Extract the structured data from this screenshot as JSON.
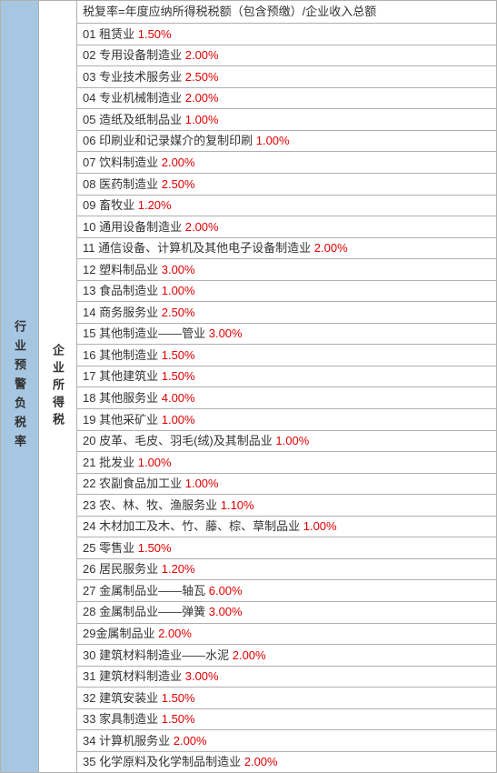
{
  "leftColLabel": "行业预警负税率",
  "midColLabel": "企业所得税",
  "headerFormula": "税复率=年度应纳所得税税额（包含预缴）/企业收入总额",
  "rateColor": "#e00000",
  "textColor": "#333333",
  "leftBg": "#a7c6e2",
  "borderColor": "#b0b0b0",
  "rows": [
    {
      "num": "01",
      "name": "租赁业",
      "rate": "1.50%"
    },
    {
      "num": "02",
      "name": "专用设备制造业",
      "rate": "2.00%"
    },
    {
      "num": "03",
      "name": "专业技术服务业",
      "rate": "2.50%"
    },
    {
      "num": "04",
      "name": "专业机械制造业",
      "rate": "2.00%"
    },
    {
      "num": "05",
      "name": "造纸及纸制品业",
      "rate": "1.00%"
    },
    {
      "num": "06",
      "name": "印刷业和记录媒介的复制印刷",
      "rate": "1.00%"
    },
    {
      "num": "07",
      "name": "饮料制造业",
      "rate": "2.00%"
    },
    {
      "num": "08",
      "name": "医药制造业",
      "rate": "2.50%"
    },
    {
      "num": "09",
      "name": "畜牧业",
      "rate": "1.20%"
    },
    {
      "num": "10",
      "name": "通用设备制造业",
      "rate": "2.00%"
    },
    {
      "num": "11",
      "name": "通信设备、计算机及其他电子设备制造业",
      "rate": "2.00%"
    },
    {
      "num": "12",
      "name": "塑料制品业",
      "rate": "3.00%"
    },
    {
      "num": "13",
      "name": "食品制造业",
      "rate": "1.00%"
    },
    {
      "num": "14",
      "name": "商务服务业",
      "rate": "2.50%"
    },
    {
      "num": "15",
      "name": "其他制造业——管业",
      "rate": "3.00%"
    },
    {
      "num": "16",
      "name": "其他制造业",
      "rate": "1.50%"
    },
    {
      "num": "17",
      "name": "其他建筑业",
      "rate": "1.50%"
    },
    {
      "num": "18",
      "name": "其他服务业",
      "rate": "4.00%"
    },
    {
      "num": "19",
      "name": "其他采矿业",
      "rate": "1.00%"
    },
    {
      "num": "20",
      "name": "皮革、毛皮、羽毛(绒)及其制品业",
      "rate": "1.00%"
    },
    {
      "num": "21",
      "name": "批发业",
      "rate": "1.00%"
    },
    {
      "num": "22",
      "name": "农副食品加工业",
      "rate": "1.00%"
    },
    {
      "num": "23",
      "name": "农、林、牧、渔服务业",
      "rate": "1.10%"
    },
    {
      "num": "24",
      "name": "木材加工及木、竹、藤、棕、草制品业",
      "rate": "1.00%"
    },
    {
      "num": "25",
      "name": "零售业",
      "rate": "1.50%"
    },
    {
      "num": "26",
      "name": "居民服务业",
      "rate": "1.20%"
    },
    {
      "num": "27",
      "name": "金属制品业——轴瓦",
      "rate": "6.00%"
    },
    {
      "num": "28",
      "name": "金属制品业——弹簧",
      "rate": "3.00%"
    },
    {
      "num": "29",
      "name": "金属制品业",
      "nospace": true,
      "rate": "2.00%"
    },
    {
      "num": "30",
      "name": "建筑材料制造业——水泥",
      "rate": "2.00%"
    },
    {
      "num": "31",
      "name": "建筑材料制造业",
      "rate": "3.00%"
    },
    {
      "num": "32",
      "name": "建筑安装业",
      "rate": "1.50%"
    },
    {
      "num": "33",
      "name": "家具制造业",
      "rate": "1.50%"
    },
    {
      "num": "34",
      "name": "计算机服务业",
      "rate": "2.00%"
    },
    {
      "num": "35",
      "name": "化学原料及化学制品制造业",
      "rate": "2.00%"
    }
  ]
}
